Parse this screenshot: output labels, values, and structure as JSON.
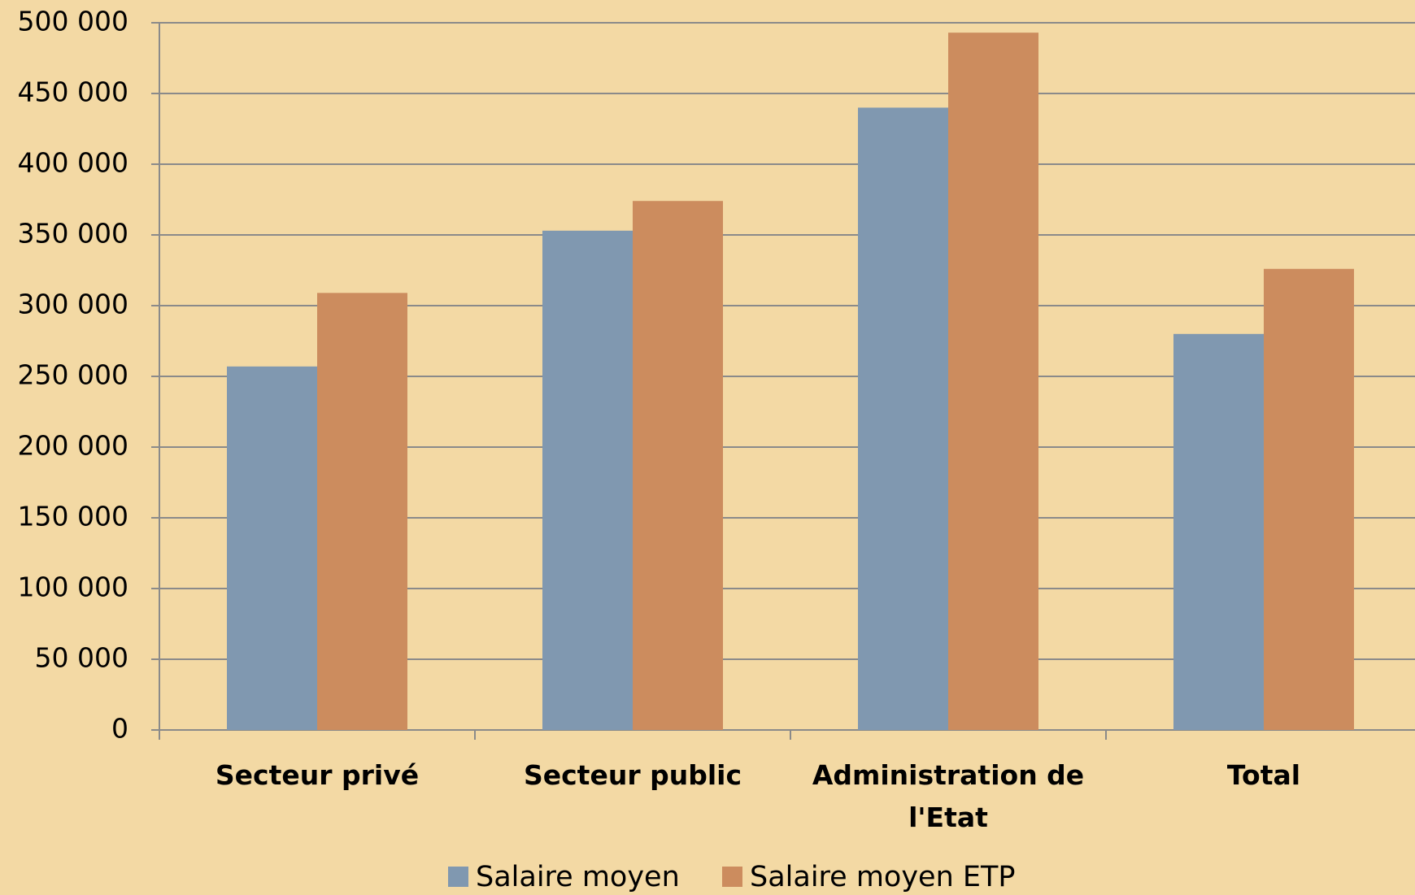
{
  "chart_data": {
    "type": "bar",
    "categories": [
      "Secteur privé",
      "Secteur public",
      "Administration de l'Etat",
      "Total"
    ],
    "series": [
      {
        "name": "Salaire moyen",
        "color": "#8098b0",
        "values": [
          257000,
          353000,
          440000,
          280000
        ]
      },
      {
        "name": "Salaire moyen ETP",
        "color": "#cc8c5e",
        "values": [
          309000,
          374000,
          493000,
          326000
        ]
      }
    ],
    "ylim": [
      0,
      500000
    ],
    "yticks": [
      0,
      {
        "value": 50000,
        "label": "50 000"
      },
      {
        "value": 100000,
        "label": "100 000"
      },
      {
        "value": 150000,
        "label": "150 000"
      },
      {
        "value": 200000,
        "label": "200 000"
      },
      {
        "value": 250000,
        "label": "250 000"
      },
      {
        "value": 300000,
        "label": "300 000"
      },
      {
        "value": 350000,
        "label": "350 000"
      },
      {
        "value": 400000,
        "label": "400 000"
      },
      {
        "value": 450000,
        "label": "450 000"
      },
      {
        "value": 500000,
        "label": "500 000"
      }
    ],
    "grid": true,
    "legend": "bottom"
  }
}
